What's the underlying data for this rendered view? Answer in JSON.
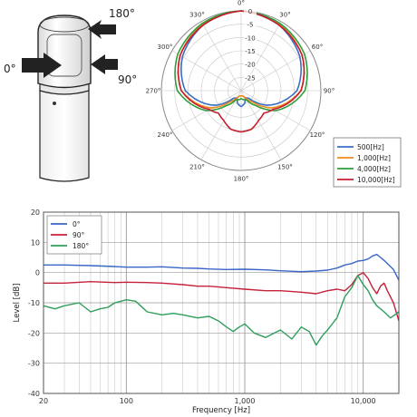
{
  "mic_diagram": {
    "angle_labels": [
      "180°",
      "0°",
      "90°"
    ]
  },
  "colors": {
    "c500": "#3a6fc4",
    "c1000": "#f08a1e",
    "c4000": "#2f9e3a",
    "c10000": "#c61e2e",
    "deg0": "#3a66c8",
    "deg90": "#c4213a",
    "deg180": "#2e9e5c",
    "grid": "#bdbdbd"
  },
  "chart_data": [
    {
      "type": "polar",
      "angle_labels": [
        "0°",
        "30°",
        "60°",
        "90°",
        "120°",
        "150°",
        "180°",
        "210°",
        "240°",
        "270°",
        "300°",
        "330°"
      ],
      "radial_ticks": [
        0,
        -5,
        -10,
        -15,
        -20,
        -25
      ],
      "radial_tick_labels": [
        "0",
        "-5",
        "-10",
        "-15",
        "-20",
        "-25"
      ],
      "rlim": [
        -30,
        0
      ],
      "legend_position": "right",
      "angles": [
        0,
        30,
        60,
        90,
        120,
        135,
        150,
        165,
        180,
        195,
        210,
        225,
        240,
        270,
        300,
        330
      ],
      "series": [
        {
          "name": "500[Hz]",
          "color": "#3a6fc4",
          "values": [
            0,
            -1.5,
            -4.5,
            -9,
            -19,
            -26,
            -27,
            -25,
            -24,
            -25,
            -27,
            -26,
            -19,
            -9,
            -4.5,
            -1.5
          ]
        },
        {
          "name": "1,000[Hz]",
          "color": "#f08a1e",
          "values": [
            0,
            -1.2,
            -3.5,
            -7.5,
            -17,
            -24,
            -27,
            -28,
            -28,
            -28,
            -27,
            -24,
            -17,
            -7.5,
            -3.5,
            -1.2
          ]
        },
        {
          "name": "4,000[Hz]",
          "color": "#2f9e3a",
          "values": [
            0,
            -0.8,
            -2.5,
            -6,
            -15,
            -22,
            -26,
            -26.5,
            -27,
            -26.5,
            -26,
            -22,
            -15,
            -6,
            -2.5,
            -0.8
          ]
        },
        {
          "name": "10,000[Hz]",
          "color": "#c61e2e",
          "values": [
            0,
            -1.5,
            -3.5,
            -7.5,
            -16,
            -18,
            -17,
            -15,
            -14.5,
            -15,
            -17,
            -18,
            -16,
            -7.5,
            -3.5,
            -1.5
          ]
        }
      ]
    },
    {
      "type": "line",
      "xlabel": "Frequency [Hz]",
      "ylabel": "Level [dB]",
      "xscale": "log",
      "xlim": [
        20,
        20000
      ],
      "ylim": [
        -40,
        20
      ],
      "xticks": [
        20,
        100,
        1000,
        10000
      ],
      "xtick_labels": [
        "20",
        "100",
        "1,000",
        "10,000"
      ],
      "yticks": [
        20,
        10,
        0,
        -10,
        -20,
        -30,
        -40
      ],
      "ytick_labels": [
        "20",
        "10",
        "0",
        "-10",
        "-20",
        "-30",
        "-40"
      ],
      "grid": true,
      "legend_position": "top-left",
      "series": [
        {
          "name": "0°",
          "color": "#3a66c8",
          "x": [
            20,
            30,
            50,
            80,
            100,
            150,
            200,
            300,
            400,
            500,
            700,
            1000,
            1500,
            2000,
            3000,
            4000,
            5000,
            6000,
            7000,
            8000,
            9000,
            10000,
            11000,
            12000,
            13000,
            14000,
            15000,
            16000,
            18000,
            20000
          ],
          "y": [
            2.5,
            2.5,
            2.3,
            2.0,
            1.8,
            1.8,
            1.9,
            1.5,
            1.4,
            1.2,
            1.0,
            1.1,
            0.9,
            0.6,
            0.3,
            0.5,
            0.8,
            1.5,
            2.5,
            3.0,
            3.8,
            4.0,
            4.5,
            5.5,
            6.0,
            5.0,
            4.0,
            3.0,
            1.0,
            -2.5
          ]
        },
        {
          "name": "90°",
          "color": "#c4213a",
          "x": [
            20,
            30,
            50,
            80,
            100,
            150,
            200,
            300,
            400,
            500,
            700,
            1000,
            1500,
            2000,
            3000,
            4000,
            5000,
            6000,
            7000,
            8000,
            9000,
            10000,
            11000,
            12000,
            13000,
            14000,
            15000,
            16000,
            18000,
            20000
          ],
          "y": [
            -3.5,
            -3.5,
            -3.0,
            -3.3,
            -3.2,
            -3.3,
            -3.5,
            -4.0,
            -4.5,
            -4.5,
            -5.0,
            -5.5,
            -6.0,
            -6.0,
            -6.5,
            -7.0,
            -6.0,
            -5.5,
            -6.0,
            -4.0,
            -1.0,
            0.0,
            -2.0,
            -5.0,
            -7.0,
            -4.5,
            -3.5,
            -6.0,
            -10.0,
            -16.0
          ]
        },
        {
          "name": "180°",
          "color": "#2e9e5c",
          "x": [
            20,
            25,
            30,
            40,
            50,
            60,
            70,
            80,
            90,
            100,
            120,
            150,
            200,
            250,
            300,
            400,
            500,
            600,
            700,
            800,
            900,
            1000,
            1200,
            1500,
            2000,
            2500,
            3000,
            3500,
            4000,
            4500,
            5000,
            6000,
            7000,
            8000,
            9000,
            10000,
            11000,
            12000,
            13000,
            15000,
            17000,
            20000
          ],
          "y": [
            -11.0,
            -12.0,
            -11.0,
            -10.0,
            -13.0,
            -12.0,
            -11.5,
            -10.0,
            -9.5,
            -9.0,
            -9.5,
            -13.0,
            -14.0,
            -13.5,
            -14.0,
            -15.0,
            -14.5,
            -16.0,
            -18.0,
            -19.5,
            -18.0,
            -17.0,
            -20.0,
            -21.5,
            -19.0,
            -22.0,
            -18.0,
            -19.5,
            -24.0,
            -21.0,
            -19.0,
            -15.0,
            -8.0,
            -5.0,
            -1.0,
            -4.0,
            -6.0,
            -9.0,
            -11.0,
            -13.0,
            -15.0,
            -13.0
          ]
        }
      ]
    }
  ]
}
